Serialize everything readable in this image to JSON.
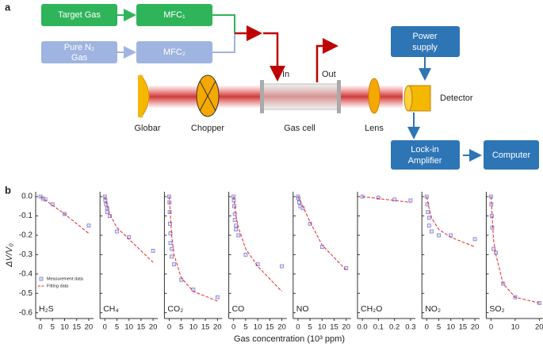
{
  "panel_labels": [
    "a",
    "b"
  ],
  "diagram": {
    "target_gas": "Target Gas",
    "mfc1": "MFC₁",
    "pure_gas": [
      "Pure N₂",
      "Gas"
    ],
    "mfc2": "MFC₂",
    "in": "In",
    "out": "Out",
    "power_supply": [
      "Power",
      "supply"
    ],
    "detector": "Detector",
    "globar": "Globar",
    "chopper": "Chopper",
    "gas_cell": "Gas cell",
    "lens": "Lens",
    "lock_in": [
      "Lock-in",
      "Amplifier"
    ],
    "computer": "Computer"
  },
  "chart_data": [
    {
      "type": "scatter",
      "label": "H₂S",
      "xlabel": "Gas concentration (10³ ppm)",
      "ylabel": "ΔV/V₀",
      "xlim": [
        -2,
        22
      ],
      "xticks": [
        0,
        5,
        10,
        15,
        20
      ],
      "ylim": [
        -0.63,
        0.025
      ],
      "yticks": [
        {
          "value": 0,
          "label": "0.0"
        },
        -0.1,
        -0.2,
        -0.3,
        -0.4,
        -0.5,
        -0.6
      ],
      "series": [
        {
          "name": "Measurement data",
          "type": "marker",
          "color": "#7b7bd6",
          "x": [
            0,
            1,
            2,
            5,
            10,
            20
          ],
          "values": [
            0,
            -0.01,
            -0.015,
            -0.04,
            -0.09,
            -0.15
          ]
        },
        {
          "name": "Fitting data",
          "type": "dashed-line",
          "color": "#e8262a",
          "x": [
            0,
            5,
            10,
            15,
            20
          ],
          "values": [
            0,
            -0.045,
            -0.09,
            -0.14,
            -0.19
          ]
        }
      ]
    },
    {
      "type": "scatter",
      "label": "CH₄",
      "xlim": [
        -2,
        22
      ],
      "xticks": [
        0,
        5,
        10,
        15,
        20
      ],
      "ylim": [
        -0.63,
        0.025
      ],
      "series": [
        {
          "type": "marker",
          "color": "#7b7bd6",
          "x": [
            0,
            0.2,
            0.5,
            1,
            1,
            2,
            5,
            10,
            20
          ],
          "values": [
            0,
            -0.02,
            -0.04,
            -0.06,
            -0.08,
            -0.1,
            -0.18,
            -0.21,
            -0.28
          ]
        },
        {
          "type": "dashed-line",
          "color": "#e8262a",
          "x": [
            0,
            1,
            2,
            5,
            10,
            20
          ],
          "values": [
            0,
            -0.05,
            -0.09,
            -0.16,
            -0.22,
            -0.34
          ]
        }
      ]
    },
    {
      "type": "scatter",
      "label": "CO₂",
      "xlim": [
        -2,
        22
      ],
      "xticks": [
        0,
        5,
        10,
        15,
        20
      ],
      "ylim": [
        -0.63,
        0.025
      ],
      "series": [
        {
          "type": "marker",
          "color": "#7b7bd6",
          "x": [
            0,
            0.1,
            0.2,
            0.3,
            0.5,
            0.5,
            1,
            1,
            2,
            5,
            10,
            20
          ],
          "values": [
            0,
            -0.03,
            -0.08,
            -0.14,
            -0.19,
            -0.24,
            -0.27,
            -0.31,
            -0.35,
            -0.43,
            -0.48,
            -0.52
          ]
        },
        {
          "type": "dashed-line",
          "color": "#e8262a",
          "x": [
            0,
            1,
            2,
            5,
            10,
            20
          ],
          "values": [
            0,
            -0.2,
            -0.3,
            -0.42,
            -0.49,
            -0.54
          ]
        }
      ]
    },
    {
      "type": "scatter",
      "label": "CO",
      "xlim": [
        -2,
        22
      ],
      "xticks": [
        0,
        5,
        10,
        15,
        20
      ],
      "ylim": [
        -0.63,
        0.025
      ],
      "series": [
        {
          "type": "marker",
          "color": "#7b7bd6",
          "x": [
            0,
            0.1,
            0.3,
            0.5,
            0.5,
            1,
            1,
            2,
            5,
            10,
            20
          ],
          "values": [
            0,
            -0.02,
            -0.05,
            -0.09,
            -0.12,
            -0.15,
            -0.17,
            -0.2,
            -0.3,
            -0.35,
            -0.36
          ]
        },
        {
          "type": "dashed-line",
          "color": "#e8262a",
          "x": [
            0,
            1,
            2,
            5,
            10,
            20
          ],
          "values": [
            0,
            -0.1,
            -0.16,
            -0.27,
            -0.36,
            -0.49
          ]
        }
      ]
    },
    {
      "type": "scatter",
      "label": "NO",
      "xlim": [
        -2,
        22
      ],
      "xticks": [
        0,
        5,
        10,
        15,
        20
      ],
      "ylim": [
        -0.63,
        0.025
      ],
      "series": [
        {
          "type": "marker",
          "color": "#7b7bd6",
          "x": [
            0,
            0.2,
            0.5,
            1,
            2,
            5,
            10,
            20
          ],
          "values": [
            0,
            -0.01,
            -0.03,
            -0.05,
            -0.06,
            -0.14,
            -0.26,
            -0.37
          ]
        },
        {
          "type": "dashed-line",
          "color": "#e8262a",
          "x": [
            0,
            2,
            5,
            10,
            20
          ],
          "values": [
            0,
            -0.05,
            -0.13,
            -0.25,
            -0.38
          ]
        }
      ]
    },
    {
      "type": "scatter",
      "label": "CH₂O",
      "xlim": [
        -0.03,
        0.33
      ],
      "xticks": [
        {
          "value": 0,
          "label": "0.0"
        },
        0.1,
        0.2,
        0.3
      ],
      "ylim": [
        -0.63,
        0.025
      ],
      "series": [
        {
          "type": "marker",
          "color": "#7b7bd6",
          "x": [
            0,
            0.1,
            0.2,
            0.3
          ],
          "values": [
            0,
            -0.005,
            -0.015,
            -0.02
          ]
        },
        {
          "type": "dashed-line",
          "color": "#e8262a",
          "x": [
            0,
            0.3
          ],
          "values": [
            0,
            -0.03
          ]
        }
      ]
    },
    {
      "type": "scatter",
      "label": "NO₂",
      "xlim": [
        -2,
        22
      ],
      "xticks": [
        0,
        5,
        10,
        15,
        20
      ],
      "ylim": [
        -0.63,
        0.025
      ],
      "series": [
        {
          "type": "marker",
          "color": "#7b7bd6",
          "x": [
            0,
            0.2,
            0.5,
            1,
            1,
            2,
            5,
            10,
            20
          ],
          "values": [
            0,
            -0.04,
            -0.08,
            -0.11,
            -0.15,
            -0.18,
            -0.2,
            -0.2,
            -0.22
          ]
        },
        {
          "type": "dashed-line",
          "color": "#e8262a",
          "x": [
            0,
            1,
            2,
            5,
            10,
            20
          ],
          "values": [
            0,
            -0.06,
            -0.11,
            -0.17,
            -0.21,
            -0.26
          ]
        }
      ]
    },
    {
      "type": "scatter",
      "label": "SO₂",
      "xlim": [
        -2,
        22
      ],
      "xticks": [
        0,
        10,
        20
      ],
      "ylim": [
        -0.63,
        0.025
      ],
      "series": [
        {
          "type": "marker",
          "color": "#7b7bd6",
          "x": [
            0,
            0.1,
            0.3,
            0.5,
            1,
            2,
            5,
            10,
            20
          ],
          "values": [
            0,
            -0.04,
            -0.1,
            -0.16,
            -0.27,
            -0.29,
            -0.45,
            -0.52,
            -0.55
          ]
        },
        {
          "type": "dashed-line",
          "color": "#e8262a",
          "x": [
            0,
            1,
            2,
            5,
            10,
            20
          ],
          "values": [
            0,
            -0.22,
            -0.3,
            -0.45,
            -0.52,
            -0.55
          ]
        }
      ]
    }
  ]
}
